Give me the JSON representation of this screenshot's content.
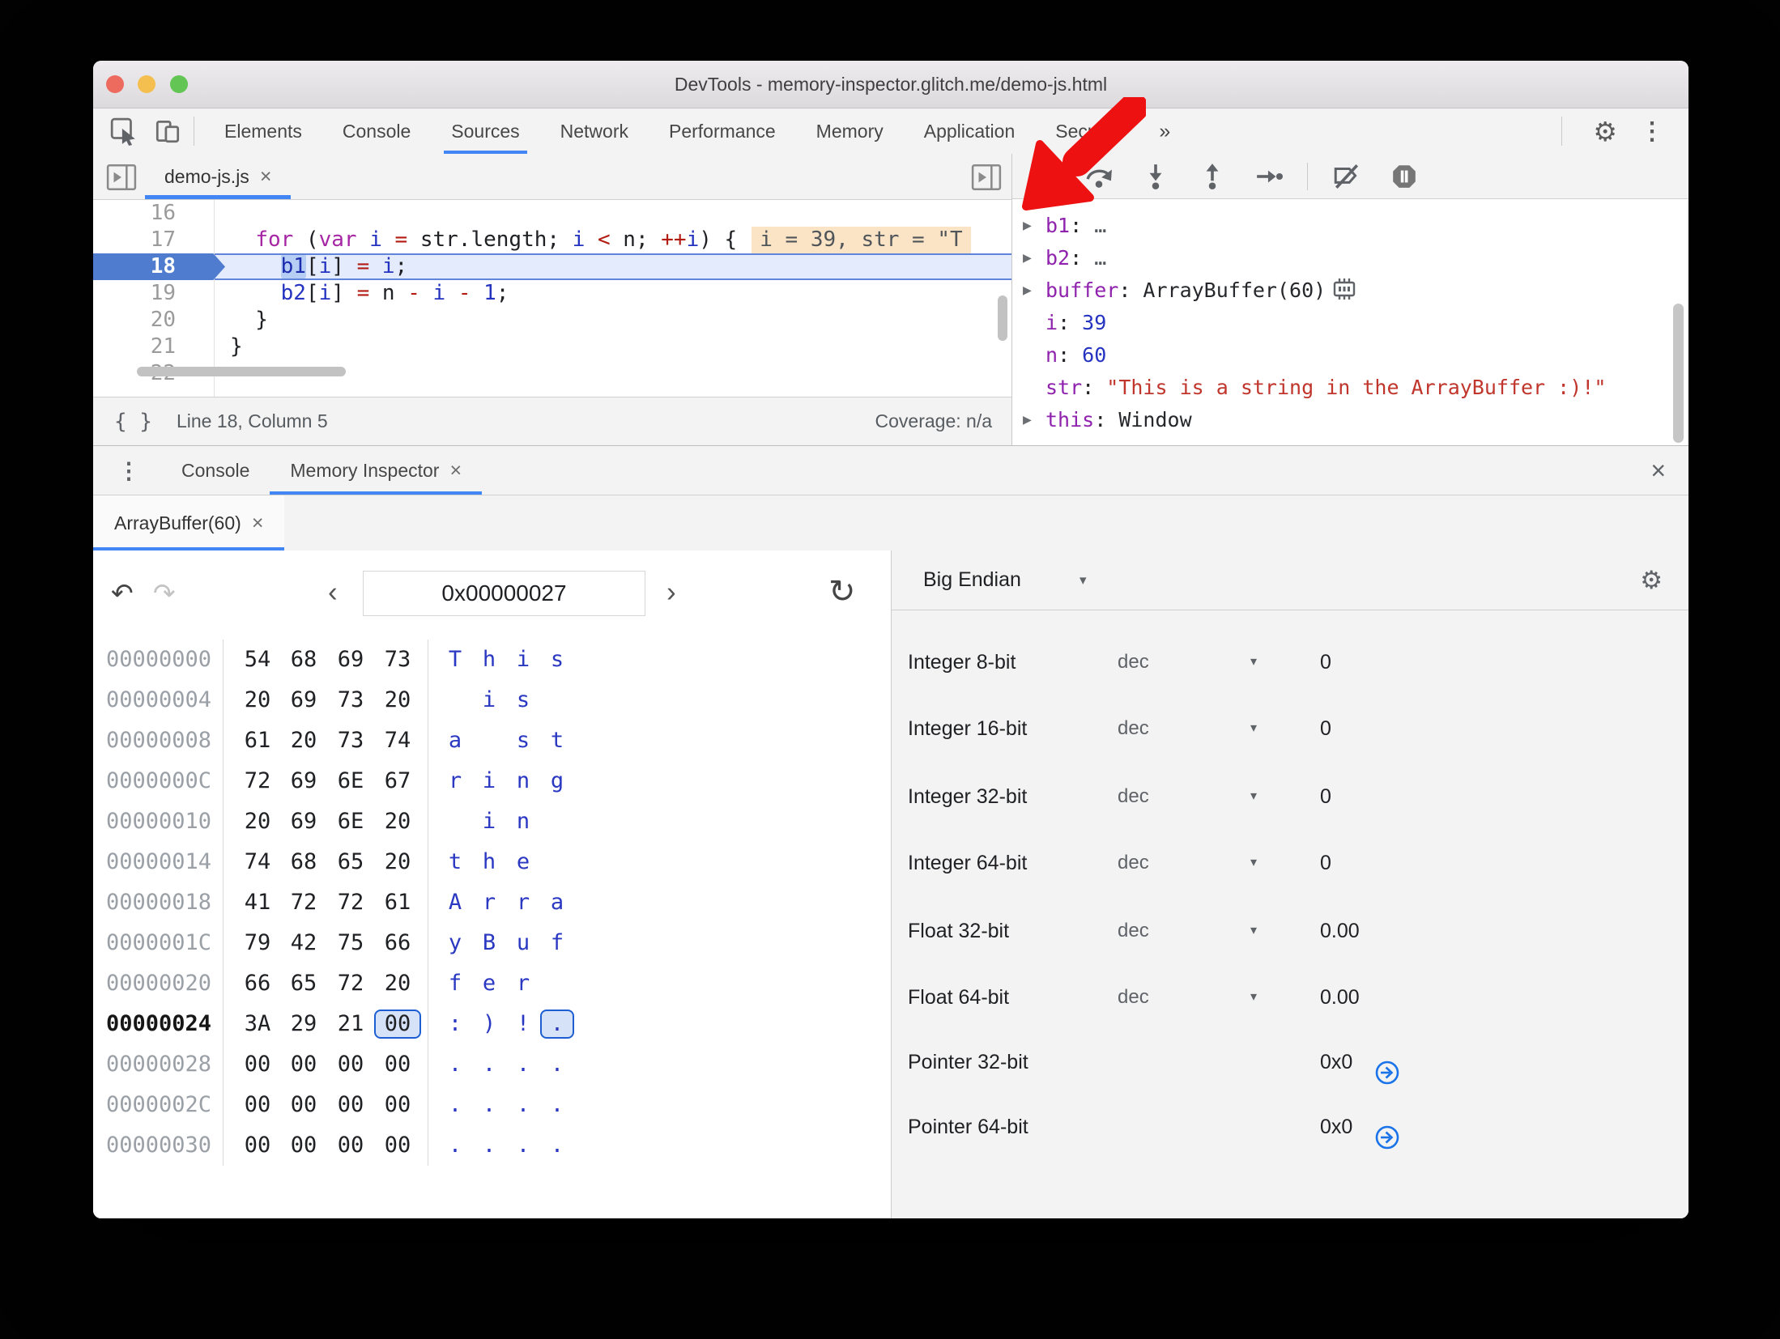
{
  "titlebar": {
    "title": "DevTools - memory-inspector.glitch.me/demo-js.html"
  },
  "tabbar": {
    "tabs": [
      "Elements",
      "Console",
      "Sources",
      "Network",
      "Performance",
      "Memory",
      "Application",
      "Security"
    ],
    "active_tab": "Sources",
    "more": "»"
  },
  "icons": {
    "gear": "⚙",
    "dots_v": "⋮",
    "close": "×",
    "back": "‹",
    "forward": "›",
    "undo": "↶",
    "redo": "↷",
    "refresh": "↻",
    "caret": "▾",
    "braces": "{ }"
  },
  "sources": {
    "file_tab": {
      "label": "demo-js.js",
      "close": "×"
    },
    "hint": "i = 39, str = \"T",
    "lines": [
      {
        "no": "16",
        "tokens": []
      },
      {
        "no": "17",
        "hint": true,
        "tokens": [
          [
            "pl",
            "  "
          ],
          [
            "kw",
            "for"
          ],
          [
            "pl",
            " ("
          ],
          [
            "kw",
            "var"
          ],
          [
            "pl",
            " "
          ],
          [
            "vr",
            "i"
          ],
          [
            "pl",
            " "
          ],
          [
            "op",
            "="
          ],
          [
            "pl",
            " str.length; "
          ],
          [
            "vr",
            "i"
          ],
          [
            "pl",
            " "
          ],
          [
            "op",
            "<"
          ],
          [
            "pl",
            " n; "
          ],
          [
            "op",
            "++"
          ],
          [
            "vr",
            "i"
          ],
          [
            "pl",
            ") {"
          ]
        ]
      },
      {
        "no": "18",
        "exec": true,
        "tokens": [
          [
            "pl",
            "    "
          ],
          [
            "sel",
            "b1"
          ],
          [
            "pl",
            "["
          ],
          [
            "vr",
            "i"
          ],
          [
            "pl",
            "] "
          ],
          [
            "op",
            "="
          ],
          [
            "pl",
            " "
          ],
          [
            "vr",
            "i"
          ],
          [
            "pl",
            ";"
          ]
        ]
      },
      {
        "no": "19",
        "tokens": [
          [
            "pl",
            "    "
          ],
          [
            "vr",
            "b2"
          ],
          [
            "pl",
            "["
          ],
          [
            "vr",
            "i"
          ],
          [
            "pl",
            "] "
          ],
          [
            "op",
            "="
          ],
          [
            "pl",
            " n "
          ],
          [
            "op",
            "-"
          ],
          [
            "pl",
            " "
          ],
          [
            "vr",
            "i"
          ],
          [
            "pl",
            " "
          ],
          [
            "op",
            "-"
          ],
          [
            "pl",
            " "
          ],
          [
            "nm",
            "1"
          ],
          [
            "pl",
            ";"
          ]
        ]
      },
      {
        "no": "20",
        "tokens": [
          [
            "pl",
            "  }"
          ]
        ]
      },
      {
        "no": "21",
        "tokens": [
          [
            "pl",
            "}"
          ]
        ]
      },
      {
        "no": "22",
        "tokens": []
      }
    ],
    "status": {
      "position": "Line 18, Column 5",
      "coverage": "Coverage: n/a"
    }
  },
  "debugger_panel": {
    "toolbar": [
      "resume",
      "step-over",
      "step-into",
      "step-out",
      "step",
      "deactivate-breakpoints",
      "pause-on-exceptions"
    ],
    "scope": [
      {
        "arrow": true,
        "name": "b1",
        "value": "…",
        "vclass": "v-dim"
      },
      {
        "arrow": true,
        "name": "b2",
        "value": "…",
        "vclass": "v-dim"
      },
      {
        "arrow": true,
        "name": "buffer",
        "value": "ArrayBuffer(60)",
        "vclass": "v-obj",
        "chip": true
      },
      {
        "arrow": false,
        "name": "i",
        "value": "39",
        "vclass": "v-num"
      },
      {
        "arrow": false,
        "name": "n",
        "value": "60",
        "vclass": "v-num"
      },
      {
        "arrow": false,
        "name": "str",
        "value": "\"This is a string in the ArrayBuffer :)!\"",
        "vclass": "v-str"
      },
      {
        "arrow": true,
        "name": "this",
        "value": "Window",
        "vclass": "v-obj"
      }
    ]
  },
  "drawer": {
    "tabs": [
      {
        "label": "Console",
        "active": false,
        "closable": false
      },
      {
        "label": "Memory Inspector",
        "active": true,
        "closable": true
      }
    ]
  },
  "memory": {
    "tab": {
      "label": "ArrayBuffer(60)",
      "close": "×"
    },
    "address": "0x00000027",
    "rows": [
      {
        "addr": "00000000",
        "bytes": [
          "54",
          "68",
          "69",
          "73"
        ],
        "ascii": [
          "T",
          "h",
          "i",
          "s"
        ]
      },
      {
        "addr": "00000004",
        "bytes": [
          "20",
          "69",
          "73",
          "20"
        ],
        "ascii": [
          "",
          "i",
          "s",
          ""
        ]
      },
      {
        "addr": "00000008",
        "bytes": [
          "61",
          "20",
          "73",
          "74"
        ],
        "ascii": [
          "a",
          "",
          "s",
          "t"
        ]
      },
      {
        "addr": "0000000C",
        "bytes": [
          "72",
          "69",
          "6E",
          "67"
        ],
        "ascii": [
          "r",
          "i",
          "n",
          "g"
        ]
      },
      {
        "addr": "00000010",
        "bytes": [
          "20",
          "69",
          "6E",
          "20"
        ],
        "ascii": [
          "",
          "i",
          "n",
          ""
        ]
      },
      {
        "addr": "00000014",
        "bytes": [
          "74",
          "68",
          "65",
          "20"
        ],
        "ascii": [
          "t",
          "h",
          "e",
          ""
        ]
      },
      {
        "addr": "00000018",
        "bytes": [
          "41",
          "72",
          "72",
          "61"
        ],
        "ascii": [
          "A",
          "r",
          "r",
          "a"
        ]
      },
      {
        "addr": "0000001C",
        "bytes": [
          "79",
          "42",
          "75",
          "66"
        ],
        "ascii": [
          "y",
          "B",
          "u",
          "f"
        ]
      },
      {
        "addr": "00000020",
        "bytes": [
          "66",
          "65",
          "72",
          "20"
        ],
        "ascii": [
          "f",
          "e",
          "r",
          ""
        ]
      },
      {
        "addr": "00000024",
        "bold": true,
        "selected": 3,
        "bytes": [
          "3A",
          "29",
          "21",
          "00"
        ],
        "ascii": [
          ":",
          ")",
          "!",
          "."
        ]
      },
      {
        "addr": "00000028",
        "bytes": [
          "00",
          "00",
          "00",
          "00"
        ],
        "ascii": [
          ".",
          ".",
          ".",
          "."
        ]
      },
      {
        "addr": "0000002C",
        "bytes": [
          "00",
          "00",
          "00",
          "00"
        ],
        "ascii": [
          ".",
          ".",
          ".",
          "."
        ]
      },
      {
        "addr": "00000030",
        "bytes": [
          "00",
          "00",
          "00",
          "00"
        ],
        "ascii": [
          ".",
          ".",
          ".",
          "."
        ]
      }
    ],
    "value_panel": {
      "endianness": "Big Endian",
      "rows": [
        {
          "label": "Integer 8-bit",
          "mode": "dec",
          "value": "0"
        },
        {
          "label": "Integer 16-bit",
          "mode": "dec",
          "value": "0"
        },
        {
          "label": "Integer 32-bit",
          "mode": "dec",
          "value": "0"
        },
        {
          "label": "Integer 64-bit",
          "mode": "dec",
          "value": "0"
        },
        {
          "label": "Float 32-bit",
          "mode": "dec",
          "value": "0.00"
        },
        {
          "label": "Float 64-bit",
          "mode": "dec",
          "value": "0.00"
        },
        {
          "label": "Pointer 32-bit",
          "value": "0x0",
          "jump": true
        },
        {
          "label": "Pointer 64-bit",
          "value": "0x0",
          "jump": true
        }
      ]
    }
  },
  "colors": {
    "accent": "#4285f4",
    "selection_border": "#1d5fd3",
    "annotation_arrow": "#ee1111"
  }
}
